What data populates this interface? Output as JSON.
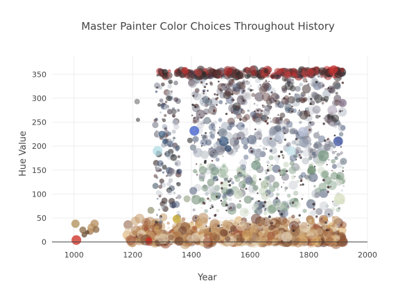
{
  "chart_data": {
    "type": "scatter",
    "title": "Master Painter Color Choices Throughout History",
    "xlabel": "Year",
    "ylabel": "Hue Value",
    "xlim": [
      925,
      2000
    ],
    "ylim": [
      -15,
      375
    ],
    "x_ticks": [
      1000,
      1200,
      1400,
      1600,
      1800,
      2000
    ],
    "y_ticks": [
      0,
      50,
      100,
      150,
      200,
      250,
      300,
      350
    ],
    "grid": true,
    "zero_line": true,
    "points": [
      {
        "x": 1005,
        "y": 38,
        "s": 6,
        "c": "#b08d57"
      },
      {
        "x": 1008,
        "y": 4,
        "s": 7,
        "c": "#cc2a1e"
      },
      {
        "x": 1030,
        "y": 25,
        "s": 5,
        "c": "#8a6a45"
      },
      {
        "x": 1035,
        "y": 15,
        "s": 4,
        "c": "#6b4f33"
      },
      {
        "x": 1055,
        "y": 22,
        "s": 5,
        "c": "#a47850"
      },
      {
        "x": 1060,
        "y": 30,
        "s": 6,
        "c": "#c09868"
      },
      {
        "x": 1070,
        "y": 38,
        "s": 6,
        "c": "#b58e5e"
      },
      {
        "x": 1075,
        "y": 26,
        "s": 5,
        "c": "#8f6b45"
      },
      {
        "x": 1045,
        "y": 20,
        "s": 3,
        "c": "#5a3f28"
      },
      {
        "x": 1215,
        "y": 293,
        "s": 4,
        "c": "#8a8a8a"
      },
      {
        "x": 1218,
        "y": 255,
        "s": 3,
        "c": "#6a6a6a"
      },
      {
        "x": 1255,
        "y": 3,
        "s": 5,
        "c": "#cc2a1e"
      },
      {
        "x": 1262,
        "y": 66,
        "s": 5,
        "c": "#9a9a7a"
      },
      {
        "x": 1285,
        "y": 190,
        "s": 7,
        "c": "#b0dce6"
      },
      {
        "x": 1300,
        "y": 225,
        "s": 5,
        "c": "#4a6a8a"
      },
      {
        "x": 1310,
        "y": 210,
        "s": 4,
        "c": "#3a5a7a"
      },
      {
        "x": 1322,
        "y": 300,
        "s": 4,
        "c": "#5a5a5a"
      },
      {
        "x": 1340,
        "y": 272,
        "s": 4,
        "c": "#7a7a7a"
      },
      {
        "x": 1350,
        "y": 48,
        "s": 6,
        "c": "#c8a828"
      },
      {
        "x": 1378,
        "y": 358,
        "s": 5,
        "c": "#b83232"
      },
      {
        "x": 1385,
        "y": 90,
        "s": 5,
        "c": "#a8b098"
      },
      {
        "x": 1395,
        "y": 212,
        "s": 4,
        "c": "#5a5a5a"
      },
      {
        "x": 1410,
        "y": 232,
        "s": 7,
        "c": "#3a5ac8"
      },
      {
        "x": 1445,
        "y": 182,
        "s": 6,
        "c": "#c8ccd0"
      },
      {
        "x": 1480,
        "y": 148,
        "s": 6,
        "c": "#86a08e"
      },
      {
        "x": 1510,
        "y": 210,
        "s": 7,
        "c": "#3a5a80"
      },
      {
        "x": 1525,
        "y": 195,
        "s": 5,
        "c": "#304a6e"
      },
      {
        "x": 1560,
        "y": 100,
        "s": 7,
        "c": "#d0d8c8"
      },
      {
        "x": 1590,
        "y": 305,
        "s": 6,
        "c": "#d8d8dc"
      },
      {
        "x": 1620,
        "y": 160,
        "s": 7,
        "c": "#7a9a88"
      },
      {
        "x": 1650,
        "y": 120,
        "s": 6,
        "c": "#b0c0a8"
      },
      {
        "x": 1700,
        "y": 220,
        "s": 7,
        "c": "#c8d0e0"
      },
      {
        "x": 1740,
        "y": 190,
        "s": 7,
        "c": "#c0e0e8"
      },
      {
        "x": 1780,
        "y": 230,
        "s": 7,
        "c": "#b8c0d8"
      },
      {
        "x": 1810,
        "y": 150,
        "s": 6,
        "c": "#6a8a70"
      },
      {
        "x": 1850,
        "y": 180,
        "s": 8,
        "c": "#7a9a80"
      },
      {
        "x": 1880,
        "y": 275,
        "s": 7,
        "c": "#c0b8c8"
      },
      {
        "x": 1900,
        "y": 210,
        "s": 7,
        "c": "#3a50a0"
      },
      {
        "x": 1905,
        "y": 90,
        "s": 8,
        "c": "#d8e0c0"
      },
      {
        "x": 1885,
        "y": 360,
        "s": 6,
        "c": "#c83232"
      },
      {
        "x": 1915,
        "y": 290,
        "s": 6,
        "c": "#8a7a90"
      }
    ]
  }
}
